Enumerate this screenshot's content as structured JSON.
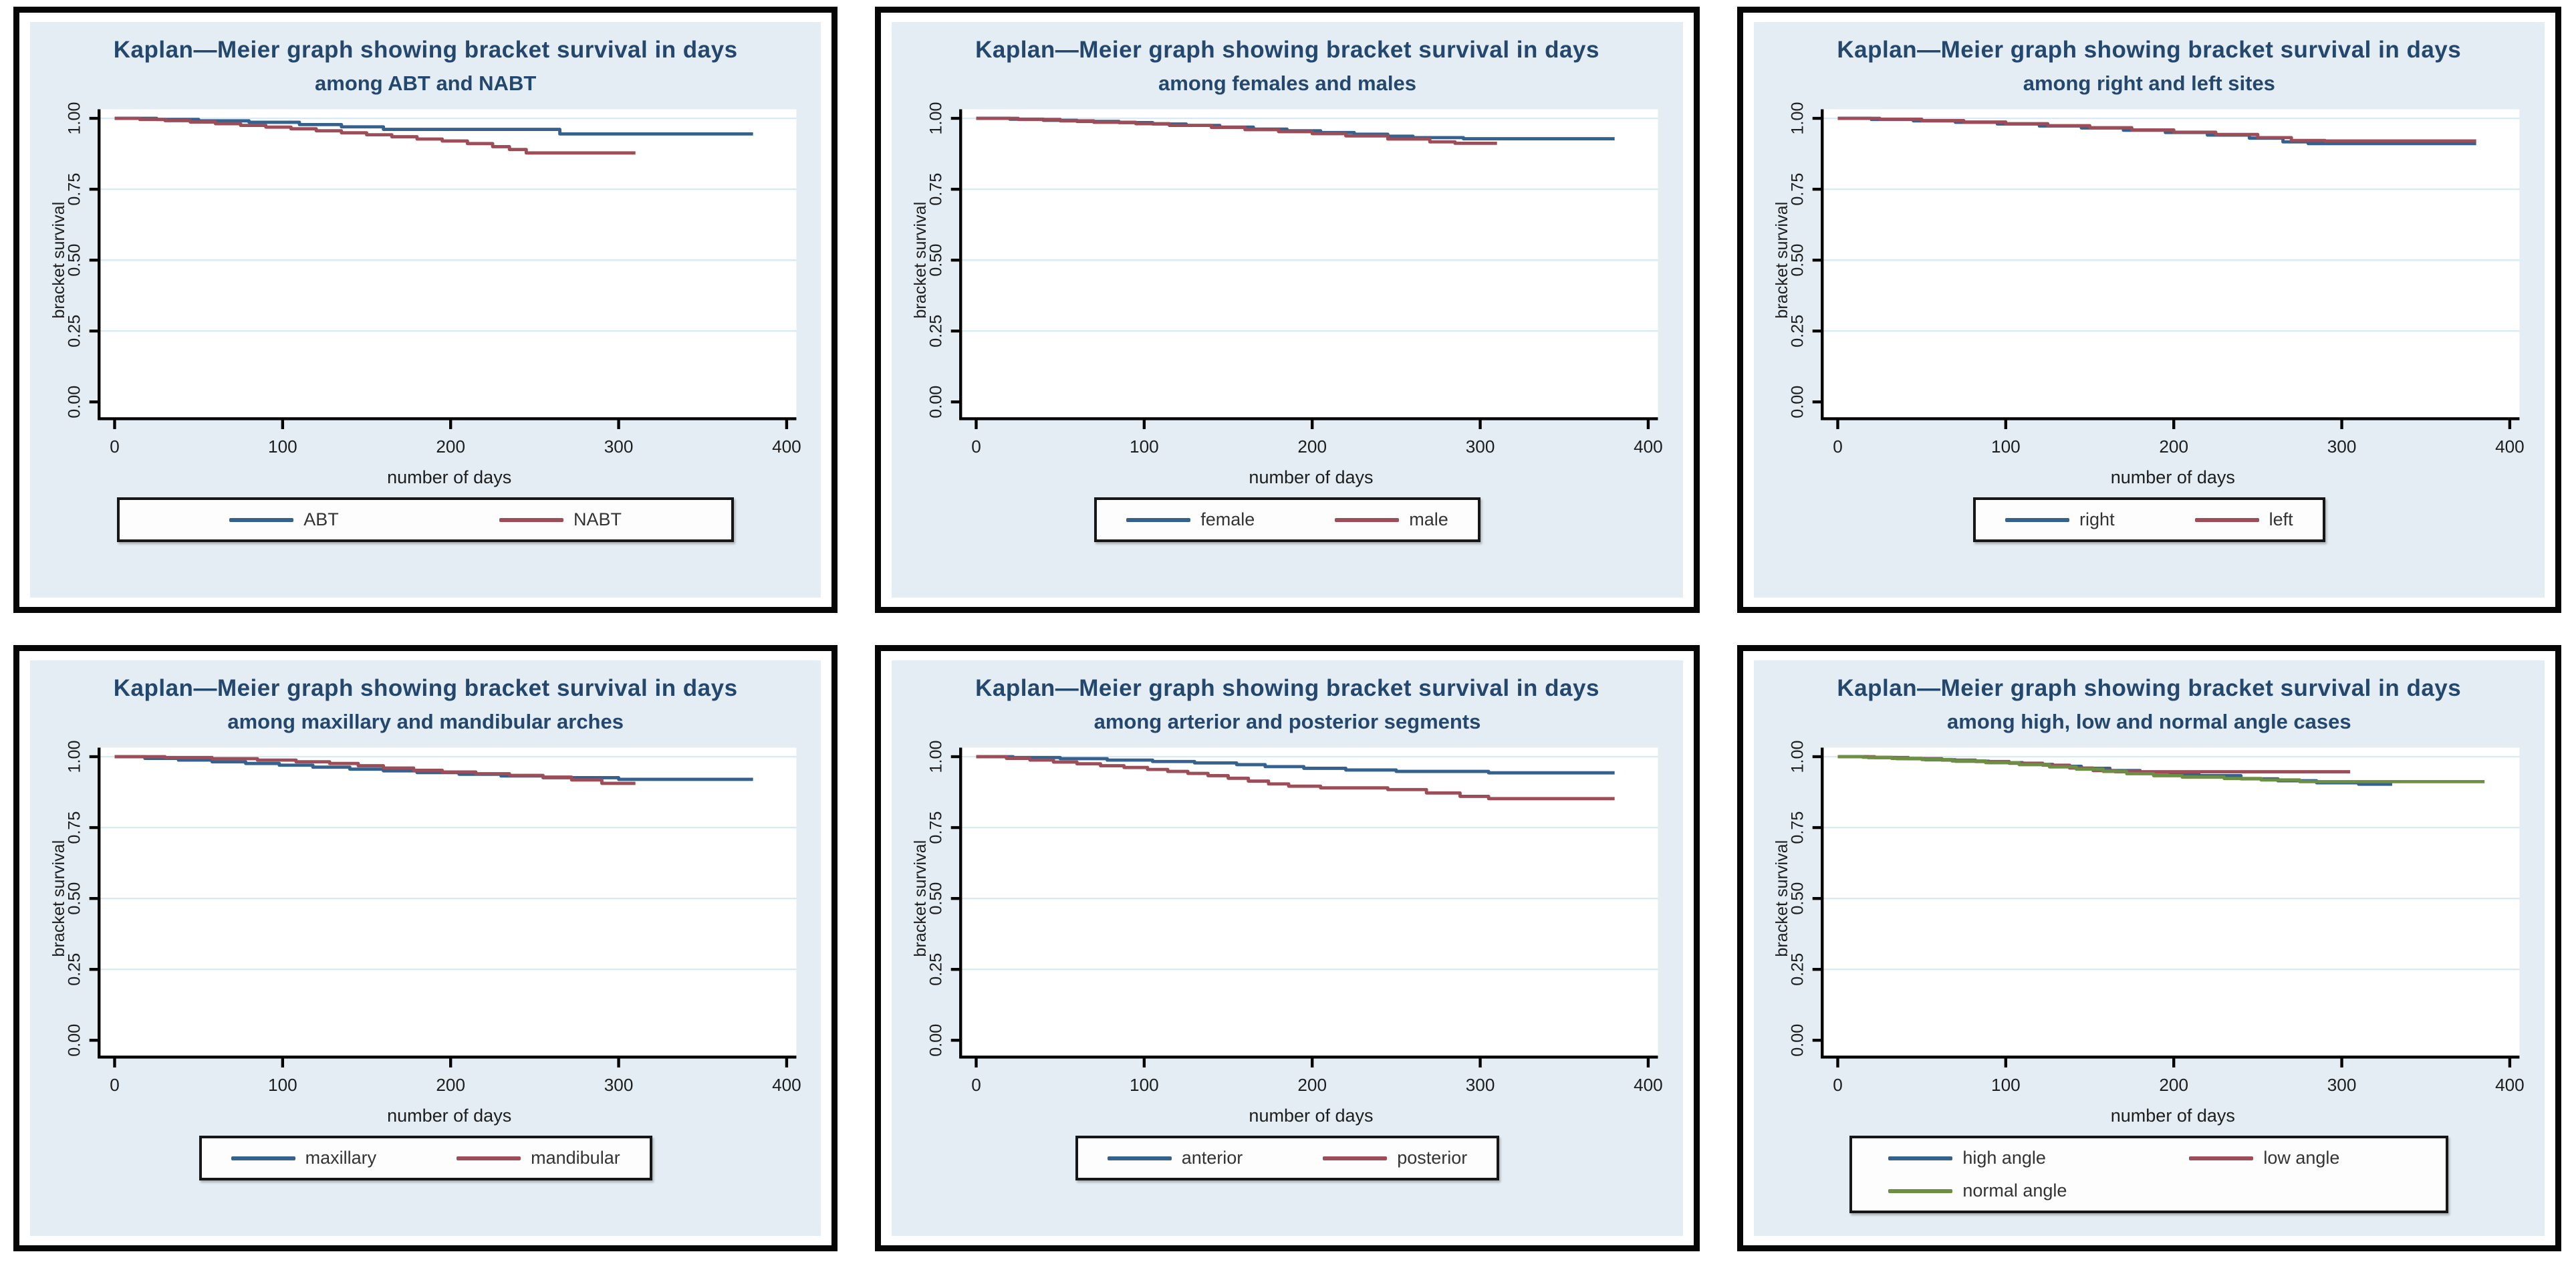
{
  "palette": {
    "blue": "#35618e",
    "red": "#9d4d57",
    "green": "#6d8f44",
    "grid": "#d9eaf2",
    "panel_bg": "#e3edf3",
    "title_color": "#24476e",
    "axis_color": "#000000"
  },
  "axes": {
    "ylabel": "bracket survival",
    "xlabel": "number of days",
    "xlim": [
      0,
      400
    ],
    "ylim": [
      0,
      1
    ],
    "grid": true,
    "legend_position": "bottom",
    "yticks": [
      {
        "v": 0.0,
        "label": "0.00"
      },
      {
        "v": 0.25,
        "label": "0.25"
      },
      {
        "v": 0.5,
        "label": "0.50"
      },
      {
        "v": 0.75,
        "label": "0.75"
      },
      {
        "v": 1.0,
        "label": "1.00"
      }
    ],
    "xticks": [
      {
        "v": 0,
        "label": "0"
      },
      {
        "v": 100,
        "label": "100"
      },
      {
        "v": 200,
        "label": "200"
      },
      {
        "v": 300,
        "label": "300"
      },
      {
        "v": 400,
        "label": "400"
      }
    ]
  },
  "chart_data": [
    {
      "type": "line",
      "subtype": "kaplan-meier-step",
      "title": "Kaplan—Meier graph showing bracket survival in days",
      "subtitle": "among ABT and NABT",
      "xlabel": "number of days",
      "ylabel": "bracket survival",
      "series": [
        {
          "name": "ABT",
          "color": "blue",
          "points": [
            [
              0,
              1
            ],
            [
              25,
              0.996
            ],
            [
              50,
              0.991
            ],
            [
              80,
              0.986
            ],
            [
              110,
              0.978
            ],
            [
              135,
              0.97
            ],
            [
              160,
              0.961
            ],
            [
              265,
              0.945
            ],
            [
              380,
              0.945
            ]
          ]
        },
        {
          "name": "NABT",
          "color": "red",
          "points": [
            [
              0,
              1
            ],
            [
              15,
              0.996
            ],
            [
              30,
              0.992
            ],
            [
              45,
              0.987
            ],
            [
              60,
              0.981
            ],
            [
              75,
              0.975
            ],
            [
              90,
              0.969
            ],
            [
              105,
              0.963
            ],
            [
              120,
              0.956
            ],
            [
              135,
              0.949
            ],
            [
              150,
              0.942
            ],
            [
              165,
              0.935
            ],
            [
              180,
              0.927
            ],
            [
              195,
              0.92
            ],
            [
              210,
              0.911
            ],
            [
              225,
              0.9
            ],
            [
              235,
              0.89
            ],
            [
              245,
              0.878
            ],
            [
              310,
              0.878
            ]
          ]
        }
      ]
    },
    {
      "type": "line",
      "subtype": "kaplan-meier-step",
      "title": "Kaplan—Meier graph showing bracket survival in days",
      "subtitle": "among females and males",
      "xlabel": "number of days",
      "ylabel": "bracket survival",
      "series": [
        {
          "name": "female",
          "color": "blue",
          "points": [
            [
              0,
              1
            ],
            [
              20,
              0.997
            ],
            [
              40,
              0.993
            ],
            [
              60,
              0.989
            ],
            [
              85,
              0.985
            ],
            [
              105,
              0.98
            ],
            [
              125,
              0.975
            ],
            [
              145,
              0.969
            ],
            [
              165,
              0.962
            ],
            [
              185,
              0.956
            ],
            [
              205,
              0.95
            ],
            [
              225,
              0.944
            ],
            [
              245,
              0.937
            ],
            [
              260,
              0.932
            ],
            [
              290,
              0.928
            ],
            [
              380,
              0.928
            ]
          ]
        },
        {
          "name": "male",
          "color": "red",
          "points": [
            [
              0,
              1
            ],
            [
              25,
              0.996
            ],
            [
              50,
              0.991
            ],
            [
              70,
              0.986
            ],
            [
              95,
              0.981
            ],
            [
              115,
              0.975
            ],
            [
              140,
              0.968
            ],
            [
              160,
              0.96
            ],
            [
              180,
              0.953
            ],
            [
              200,
              0.946
            ],
            [
              220,
              0.938
            ],
            [
              245,
              0.927
            ],
            [
              270,
              0.917
            ],
            [
              285,
              0.912
            ],
            [
              310,
              0.912
            ]
          ]
        }
      ]
    },
    {
      "type": "line",
      "subtype": "kaplan-meier-step",
      "title": "Kaplan—Meier graph showing bracket survival in days",
      "subtitle": "among right and left sites",
      "xlabel": "number of days",
      "ylabel": "bracket survival",
      "series": [
        {
          "name": "right",
          "color": "blue",
          "points": [
            [
              0,
              1
            ],
            [
              20,
              0.996
            ],
            [
              45,
              0.991
            ],
            [
              70,
              0.986
            ],
            [
              95,
              0.98
            ],
            [
              120,
              0.973
            ],
            [
              145,
              0.966
            ],
            [
              170,
              0.958
            ],
            [
              195,
              0.95
            ],
            [
              220,
              0.941
            ],
            [
              245,
              0.93
            ],
            [
              265,
              0.917
            ],
            [
              280,
              0.911
            ],
            [
              380,
              0.911
            ]
          ]
        },
        {
          "name": "left",
          "color": "red",
          "points": [
            [
              0,
              1
            ],
            [
              25,
              0.997
            ],
            [
              50,
              0.992
            ],
            [
              75,
              0.987
            ],
            [
              100,
              0.981
            ],
            [
              125,
              0.974
            ],
            [
              150,
              0.967
            ],
            [
              175,
              0.959
            ],
            [
              200,
              0.951
            ],
            [
              225,
              0.943
            ],
            [
              250,
              0.932
            ],
            [
              270,
              0.922
            ],
            [
              290,
              0.92
            ],
            [
              380,
              0.92
            ]
          ]
        }
      ]
    },
    {
      "type": "line",
      "subtype": "kaplan-meier-step",
      "title": "Kaplan—Meier graph showing bracket survival in days",
      "subtitle": "among maxillary and mandibular arches",
      "xlabel": "number of days",
      "ylabel": "bracket survival",
      "series": [
        {
          "name": "maxillary",
          "color": "blue",
          "points": [
            [
              0,
              1
            ],
            [
              18,
              0.994
            ],
            [
              38,
              0.988
            ],
            [
              58,
              0.982
            ],
            [
              78,
              0.976
            ],
            [
              98,
              0.97
            ],
            [
              118,
              0.963
            ],
            [
              140,
              0.956
            ],
            [
              160,
              0.95
            ],
            [
              180,
              0.944
            ],
            [
              205,
              0.938
            ],
            [
              230,
              0.932
            ],
            [
              255,
              0.926
            ],
            [
              300,
              0.92
            ],
            [
              380,
              0.92
            ]
          ]
        },
        {
          "name": "mandibular",
          "color": "red",
          "points": [
            [
              0,
              1
            ],
            [
              30,
              0.997
            ],
            [
              58,
              0.993
            ],
            [
              85,
              0.988
            ],
            [
              108,
              0.982
            ],
            [
              128,
              0.976
            ],
            [
              145,
              0.968
            ],
            [
              160,
              0.96
            ],
            [
              178,
              0.952
            ],
            [
              195,
              0.946
            ],
            [
              215,
              0.94
            ],
            [
              235,
              0.934
            ],
            [
              255,
              0.928
            ],
            [
              272,
              0.918
            ],
            [
              290,
              0.906
            ],
            [
              310,
              0.906
            ]
          ]
        }
      ]
    },
    {
      "type": "line",
      "subtype": "kaplan-meier-step",
      "title": "Kaplan—Meier graph showing bracket survival in days",
      "subtitle": "among arterior and posterior segments",
      "xlabel": "number of days",
      "ylabel": "bracket survival",
      "series": [
        {
          "name": "anterior",
          "color": "blue",
          "points": [
            [
              0,
              1
            ],
            [
              22,
              0.997
            ],
            [
              50,
              0.993
            ],
            [
              78,
              0.988
            ],
            [
              105,
              0.983
            ],
            [
              130,
              0.978
            ],
            [
              155,
              0.972
            ],
            [
              172,
              0.965
            ],
            [
              195,
              0.959
            ],
            [
              220,
              0.953
            ],
            [
              250,
              0.948
            ],
            [
              305,
              0.943
            ],
            [
              380,
              0.943
            ]
          ]
        },
        {
          "name": "posterior",
          "color": "red",
          "points": [
            [
              0,
              1
            ],
            [
              18,
              0.994
            ],
            [
              32,
              0.988
            ],
            [
              46,
              0.981
            ],
            [
              60,
              0.975
            ],
            [
              74,
              0.968
            ],
            [
              88,
              0.962
            ],
            [
              102,
              0.955
            ],
            [
              114,
              0.948
            ],
            [
              126,
              0.941
            ],
            [
              138,
              0.933
            ],
            [
              150,
              0.924
            ],
            [
              162,
              0.914
            ],
            [
              174,
              0.904
            ],
            [
              186,
              0.896
            ],
            [
              205,
              0.89
            ],
            [
              245,
              0.884
            ],
            [
              268,
              0.872
            ],
            [
              288,
              0.86
            ],
            [
              305,
              0.852
            ],
            [
              380,
              0.852
            ]
          ]
        }
      ]
    },
    {
      "type": "line",
      "subtype": "kaplan-meier-step",
      "title": "Kaplan—Meier graph showing bracket survival in days",
      "subtitle": "among high, low and normal angle cases",
      "xlabel": "number of days",
      "ylabel": "bracket survival",
      "series": [
        {
          "name": "high angle",
          "color": "blue",
          "points": [
            [
              0,
              1
            ],
            [
              18,
              0.997
            ],
            [
              35,
              0.993
            ],
            [
              52,
              0.989
            ],
            [
              70,
              0.984
            ],
            [
              90,
              0.979
            ],
            [
              110,
              0.973
            ],
            [
              128,
              0.966
            ],
            [
              145,
              0.959
            ],
            [
              162,
              0.951
            ],
            [
              180,
              0.945
            ],
            [
              198,
              0.939
            ],
            [
              215,
              0.933
            ],
            [
              240,
              0.922
            ],
            [
              262,
              0.915
            ],
            [
              285,
              0.908
            ],
            [
              310,
              0.903
            ],
            [
              330,
              0.903
            ]
          ]
        },
        {
          "name": "low angle",
          "color": "red",
          "points": [
            [
              0,
              1
            ],
            [
              22,
              0.997
            ],
            [
              42,
              0.993
            ],
            [
              62,
              0.988
            ],
            [
              82,
              0.983
            ],
            [
              102,
              0.977
            ],
            [
              122,
              0.97
            ],
            [
              138,
              0.96
            ],
            [
              152,
              0.951
            ],
            [
              165,
              0.947
            ],
            [
              305,
              0.947
            ]
          ]
        },
        {
          "name": "normal angle",
          "color": "green",
          "points": [
            [
              0,
              1
            ],
            [
              15,
              0.998
            ],
            [
              32,
              0.994
            ],
            [
              50,
              0.99
            ],
            [
              68,
              0.985
            ],
            [
              88,
              0.979
            ],
            [
              108,
              0.972
            ],
            [
              126,
              0.964
            ],
            [
              142,
              0.956
            ],
            [
              158,
              0.948
            ],
            [
              172,
              0.94
            ],
            [
              188,
              0.933
            ],
            [
              205,
              0.928
            ],
            [
              230,
              0.923
            ],
            [
              252,
              0.918
            ],
            [
              275,
              0.912
            ],
            [
              385,
              0.912
            ]
          ]
        }
      ]
    }
  ]
}
